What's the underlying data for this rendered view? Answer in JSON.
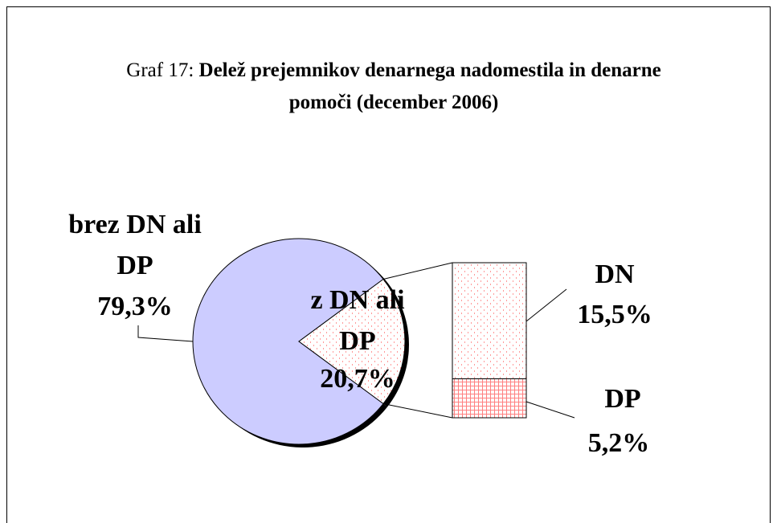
{
  "chart_data": {
    "type": "pie",
    "title_prefix": "Graf 17:",
    "title": "Delež prejemnikov denarnega nadomestila in denarne pomoči  (december 2006)",
    "categories": [
      "brez DN ali DP",
      "z DN ali DP"
    ],
    "values": [
      79.3,
      20.7
    ],
    "value_labels": [
      "79,3%",
      "20,7%"
    ],
    "colors": [
      "#ccccff",
      "#ffffff"
    ],
    "breakdown": {
      "categories": [
        "DN",
        "DP"
      ],
      "values": [
        15.5,
        5.2
      ],
      "value_labels": [
        "15,5%",
        "5,2%"
      ],
      "colors": [
        "#ff9999",
        "#ff9999"
      ]
    }
  }
}
